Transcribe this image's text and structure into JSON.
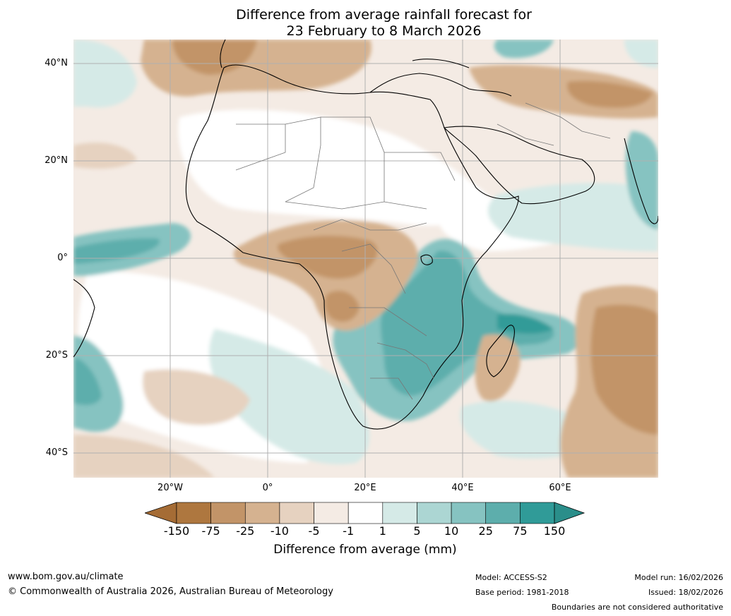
{
  "title_line1": "Difference from average rainfall forecast for",
  "title_line2": "23 February to 8 March 2026",
  "lat_labels": [
    "40°N",
    "20°N",
    "0°",
    "20°S",
    "40°S"
  ],
  "lon_labels": [
    "20°W",
    "0°",
    "20°E",
    "40°E",
    "60°E"
  ],
  "colorbar": {
    "label": "Difference from average (mm)",
    "ticks": [
      "-150",
      "-75",
      "-25",
      "-10",
      "-5",
      "-1",
      "1",
      "5",
      "10",
      "25",
      "75",
      "150"
    ],
    "colors": {
      "below_min": "#a56c35",
      "bins": [
        "#ae773f",
        "#c29468",
        "#d5b290",
        "#e6d2c0",
        "#f4ebe4",
        "#ffffff",
        "#d5eae7",
        "#acd6d3",
        "#86c3c1",
        "#5daeac",
        "#309b98"
      ],
      "above_max": "#2a8e8a"
    }
  },
  "footer": {
    "website": "www.bom.gov.au/climate",
    "copyright": "© Commonwealth of Australia 2026, Australian Bureau of Meteorology",
    "model": "Model: ACCESS-S2",
    "base_period": "Base period: 1981-2018",
    "model_run": "Model run: 16/02/2026",
    "issued": "Issued: 18/02/2026",
    "disclaimer": "Boundaries are not considered authoritative"
  }
}
